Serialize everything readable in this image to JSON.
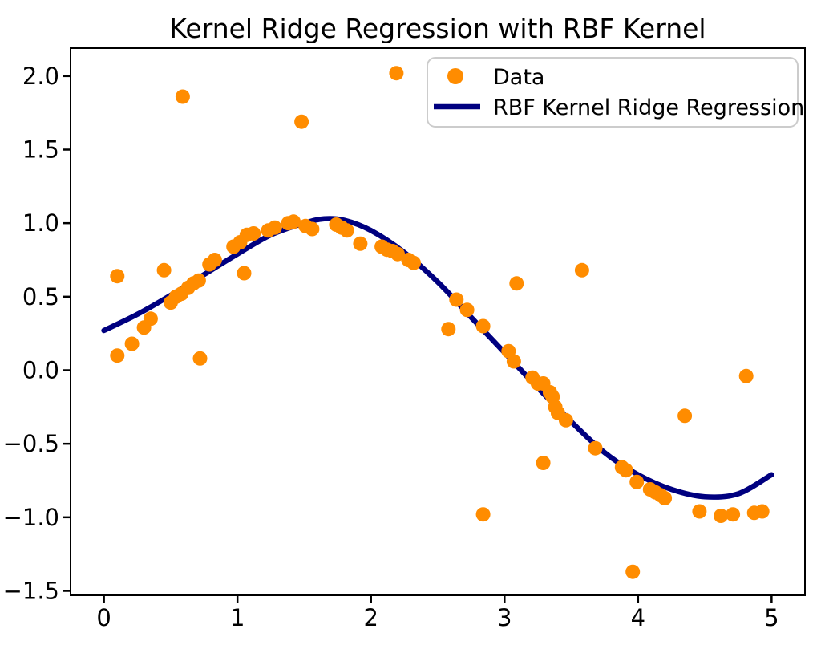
{
  "figure": {
    "background": "#ffffff"
  },
  "chart_data": {
    "type": "scatter",
    "title": "Kernel Ridge Regression with RBF Kernel",
    "xlabel": "",
    "ylabel": "",
    "xlim": [
      -0.25,
      5.25
    ],
    "ylim": [
      -1.53,
      2.19
    ],
    "grid": false,
    "x_ticks": [
      0,
      1,
      2,
      3,
      4,
      5
    ],
    "x_tick_labels": [
      "0",
      "1",
      "2",
      "3",
      "4",
      "5"
    ],
    "y_ticks": [
      2.0,
      1.5,
      1.0,
      0.5,
      0.0,
      -0.5,
      -1.0,
      -1.5
    ],
    "y_tick_labels": [
      "2.0",
      "1.5",
      "1.0",
      "0.5",
      "0.0",
      "−0.5",
      "−1.0",
      "−1.5"
    ],
    "axis_color": "#000000",
    "legend": {
      "position": "upper right",
      "border_color": "#cccccc",
      "background": "#ffffff",
      "entries": [
        {
          "label": "Data",
          "marker": "dot",
          "color": "#FF8C00"
        },
        {
          "label": "RBF Kernel Ridge Regression",
          "marker": "line",
          "color": "#000080"
        }
      ]
    },
    "series": [
      {
        "name": "Data",
        "type": "scatter",
        "color": "#FF8C00",
        "marker_radius": 9,
        "points": [
          [
            0.1,
            0.64
          ],
          [
            0.1,
            0.1
          ],
          [
            0.21,
            0.18
          ],
          [
            0.3,
            0.29
          ],
          [
            0.35,
            0.35
          ],
          [
            0.45,
            0.68
          ],
          [
            0.5,
            0.46
          ],
          [
            0.54,
            0.5
          ],
          [
            0.58,
            0.52
          ],
          [
            0.59,
            1.86
          ],
          [
            0.63,
            0.56
          ],
          [
            0.67,
            0.59
          ],
          [
            0.71,
            0.61
          ],
          [
            0.72,
            0.08
          ],
          [
            0.79,
            0.72
          ],
          [
            0.83,
            0.75
          ],
          [
            0.97,
            0.84
          ],
          [
            1.02,
            0.87
          ],
          [
            1.05,
            0.66
          ],
          [
            1.07,
            0.92
          ],
          [
            1.12,
            0.93
          ],
          [
            1.23,
            0.95
          ],
          [
            1.28,
            0.97
          ],
          [
            1.38,
            1.0
          ],
          [
            1.42,
            1.01
          ],
          [
            1.48,
            1.69
          ],
          [
            1.51,
            0.98
          ],
          [
            1.56,
            0.96
          ],
          [
            1.74,
            0.99
          ],
          [
            1.78,
            0.97
          ],
          [
            1.82,
            0.95
          ],
          [
            1.92,
            0.86
          ],
          [
            2.08,
            0.84
          ],
          [
            2.12,
            0.82
          ],
          [
            2.16,
            0.81
          ],
          [
            2.19,
            2.02
          ],
          [
            2.2,
            0.79
          ],
          [
            2.28,
            0.75
          ],
          [
            2.32,
            0.73
          ],
          [
            2.58,
            0.28
          ],
          [
            2.64,
            0.48
          ],
          [
            2.72,
            0.41
          ],
          [
            2.84,
            0.3
          ],
          [
            2.84,
            -0.98
          ],
          [
            3.03,
            0.13
          ],
          [
            3.07,
            0.06
          ],
          [
            3.09,
            0.59
          ],
          [
            3.21,
            -0.05
          ],
          [
            3.25,
            -0.09
          ],
          [
            3.29,
            -0.09
          ],
          [
            3.29,
            -0.63
          ],
          [
            3.34,
            -0.15
          ],
          [
            3.36,
            -0.18
          ],
          [
            3.38,
            -0.25
          ],
          [
            3.4,
            -0.29
          ],
          [
            3.46,
            -0.34
          ],
          [
            3.58,
            0.68
          ],
          [
            3.68,
            -0.53
          ],
          [
            3.88,
            -0.66
          ],
          [
            3.91,
            -0.68
          ],
          [
            3.96,
            -1.37
          ],
          [
            3.99,
            -0.76
          ],
          [
            4.09,
            -0.81
          ],
          [
            4.13,
            -0.83
          ],
          [
            4.17,
            -0.85
          ],
          [
            4.2,
            -0.87
          ],
          [
            4.35,
            -0.31
          ],
          [
            4.46,
            -0.96
          ],
          [
            4.62,
            -0.99
          ],
          [
            4.71,
            -0.98
          ],
          [
            4.81,
            -0.04
          ],
          [
            4.87,
            -0.97
          ],
          [
            4.93,
            -0.96
          ]
        ]
      },
      {
        "name": "RBF Kernel Ridge Regression",
        "type": "line",
        "color": "#000080",
        "line_width": 6.5,
        "x": [
          0.0,
          0.25,
          0.5,
          0.75,
          1.0,
          1.25,
          1.5,
          1.65,
          1.8,
          2.0,
          2.25,
          2.5,
          2.75,
          3.0,
          3.25,
          3.5,
          3.75,
          4.0,
          4.25,
          4.5,
          4.75,
          5.0
        ],
        "y": [
          0.27,
          0.38,
          0.51,
          0.65,
          0.79,
          0.92,
          1.0,
          1.03,
          1.02,
          0.95,
          0.8,
          0.6,
          0.36,
          0.12,
          -0.12,
          -0.35,
          -0.56,
          -0.71,
          -0.81,
          -0.86,
          -0.84,
          -0.71
        ]
      }
    ]
  }
}
